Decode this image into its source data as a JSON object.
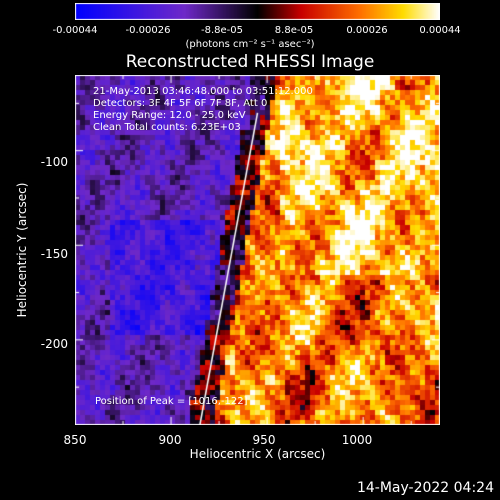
{
  "colorbar": {
    "ticks": [
      "-0.00044",
      "-0.00026",
      "-8.8e-05",
      "8.8e-05",
      "0.00026",
      "0.00044"
    ],
    "unit": "(photons cm⁻² s⁻¹ asec⁻²)"
  },
  "chart_data": {
    "type": "heatmap",
    "title": "Reconstructed RHESSI Image",
    "xlabel": "Heliocentric X (arcsec)",
    "ylabel": "Heliocentric Y (arcsec)",
    "xlim": [
      850,
      1040
    ],
    "ylim": [
      -245,
      -60
    ],
    "xticks": [
      "850",
      "900",
      "950",
      "1000"
    ],
    "yticks": [
      "-100",
      "-150",
      "-200"
    ],
    "colorbar_range": [
      -0.00044,
      0.00044
    ],
    "limb_line": [
      [
        915,
        -245
      ],
      [
        945,
        -80
      ]
    ],
    "annotations": [
      "21-May-2013 03:46:48.000 to 03:51:12.000",
      "Detectors: 3F 4F 5F 6F 7F 8F, Att 0",
      "Energy Range: 12.0 - 25.0 keV",
      "Clean     Total counts: 6.23E+03"
    ],
    "peak_label": "Position of Peak = [1016,-122]"
  },
  "footer": {
    "date": "14-May-2022 04:24"
  }
}
